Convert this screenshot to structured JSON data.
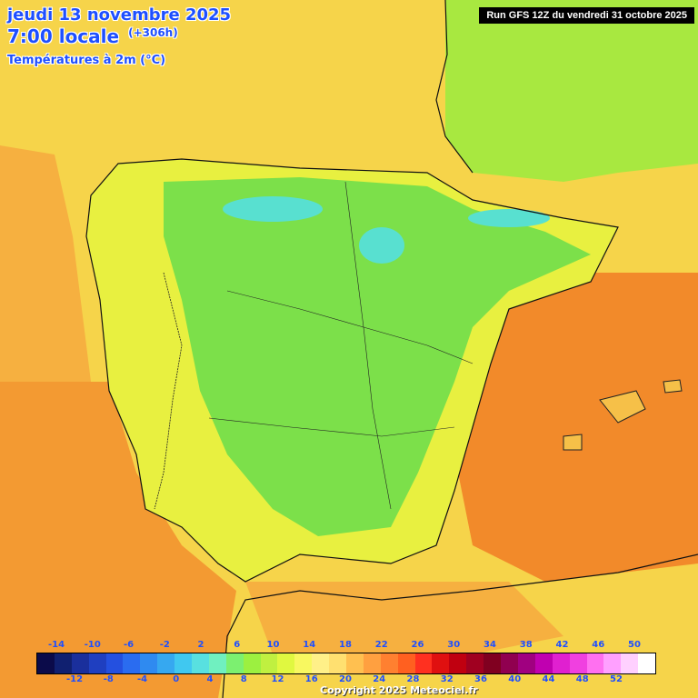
{
  "header": {
    "date_line": "jeudi 13 novembre 2025",
    "time_line": "7:00 locale",
    "lead_time": "(+306h)",
    "variable": "Températures à 2m (°C)"
  },
  "run_banner": "Run GFS 12Z du vendredi 31 octobre 2025",
  "legend": {
    "top_ticks": [
      "-14",
      "-10",
      "-6",
      "-2",
      "2",
      "6",
      "10",
      "14",
      "18",
      "22",
      "26",
      "30",
      "34",
      "38",
      "42",
      "46",
      "50"
    ],
    "bottom_ticks": [
      "-12",
      "-8",
      "-4",
      "0",
      "4",
      "8",
      "12",
      "16",
      "20",
      "24",
      "28",
      "32",
      "36",
      "40",
      "44",
      "48",
      "52"
    ],
    "colors": [
      "#0b0b4a",
      "#102070",
      "#1a2f9c",
      "#1f3fc0",
      "#2450e0",
      "#2a6cf0",
      "#2f8af0",
      "#36a8f0",
      "#40c8f0",
      "#58e0e0",
      "#70f0c0",
      "#7cf070",
      "#9cf040",
      "#c0f040",
      "#e0f840",
      "#f8f860",
      "#fff088",
      "#ffe070",
      "#ffc050",
      "#ffa040",
      "#ff8030",
      "#ff6020",
      "#ff3020",
      "#e01010",
      "#c00010",
      "#a00020",
      "#800020",
      "#900050",
      "#a00080",
      "#c000b0",
      "#e020d0",
      "#f040e0",
      "#ff70f0",
      "#ffa0ff",
      "#ffd0ff",
      "#ffffff"
    ]
  },
  "map_colors": {
    "sea_orange": "#f39a32",
    "sea_yellow": "#f6d44a",
    "land_green": "#7ce04a",
    "land_light_green": "#a8e840",
    "land_cyan": "#58e0d0",
    "land_yellow": "#e8f040",
    "warm_orange": "#f28a2a"
  },
  "copyright": "Copyright 2025 Meteociel.fr"
}
